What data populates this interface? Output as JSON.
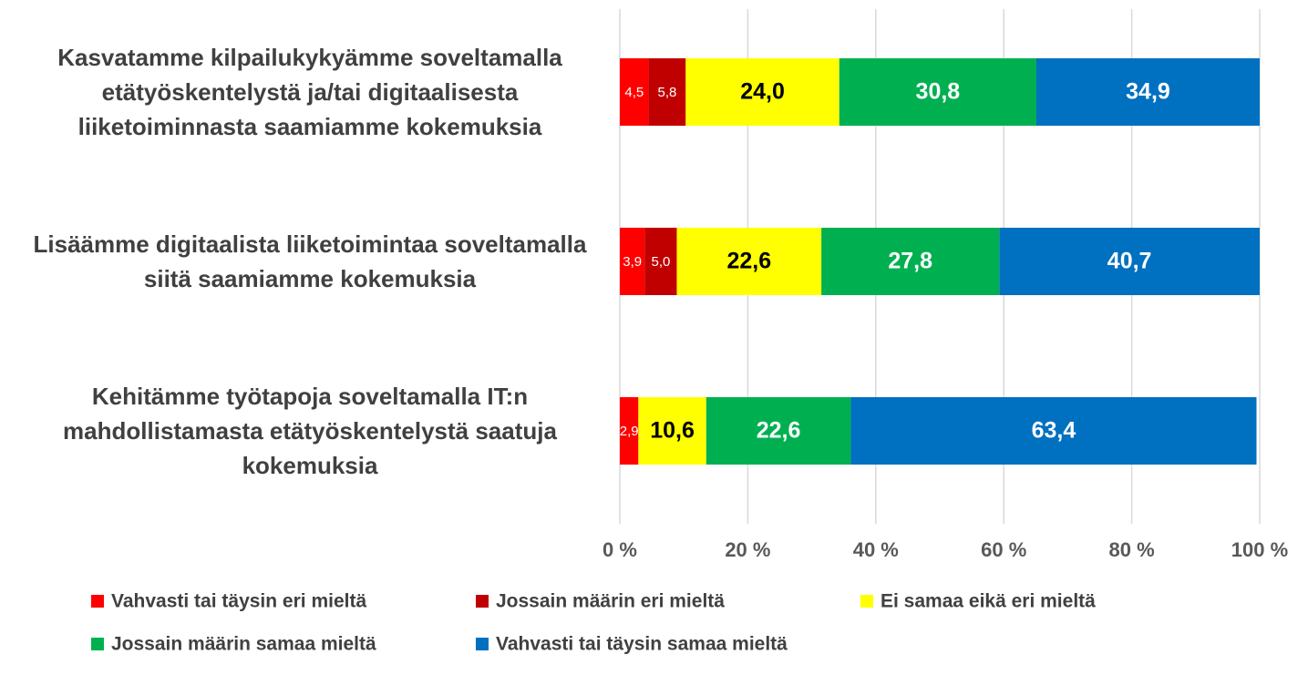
{
  "chart_data": {
    "type": "stacked_barh",
    "categories": [
      "Kasvatamme kilpailukykyämme soveltamalla etätyöskentelystä ja/tai digitaalisesta liiketoiminnasta saamiamme kokemuksia",
      "Lisäämme digitaalista liiketoimintaa soveltamalla siitä saamiamme kokemuksia",
      "Kehitämme työtapoja soveltamalla IT:n mahdollistamasta etätyöskentelystä saatuja kokemuksia"
    ],
    "series": [
      {
        "name": "Vahvasti tai täysin eri mieltä",
        "color": "#ff0000",
        "values": [
          4.5,
          3.9,
          2.9
        ],
        "value_labels": [
          "4,5",
          "3,9",
          "2,9"
        ]
      },
      {
        "name": "Jossain määrin eri mieltä",
        "color": "#c00000",
        "values": [
          5.8,
          5.0,
          null
        ],
        "value_labels": [
          "5,8",
          "5,0",
          null
        ]
      },
      {
        "name": "Ei samaa eikä eri mieltä",
        "color": "#ffff00",
        "values": [
          24.0,
          22.6,
          10.6
        ],
        "value_labels": [
          "24,0",
          "22,6",
          "10,6"
        ]
      },
      {
        "name": "Jossain määrin samaa mieltä",
        "color": "#00b050",
        "values": [
          30.8,
          27.8,
          22.6
        ],
        "value_labels": [
          "30,8",
          "27,8",
          "22,6"
        ]
      },
      {
        "name": "Vahvasti tai täysin samaa mieltä",
        "color": "#0070c0",
        "values": [
          34.9,
          40.7,
          63.4
        ],
        "value_labels": [
          "34,9",
          "40,7",
          "63,4"
        ]
      }
    ],
    "xlim": [
      0,
      100
    ],
    "xticks": [
      {
        "value": 0,
        "label": "0 %"
      },
      {
        "value": 20,
        "label": "20 %"
      },
      {
        "value": 40,
        "label": "40 %"
      },
      {
        "value": 60,
        "label": "60 %"
      },
      {
        "value": 80,
        "label": "80 %"
      },
      {
        "value": 100,
        "label": "100 %"
      }
    ],
    "grid": true,
    "legend": "bottom"
  }
}
